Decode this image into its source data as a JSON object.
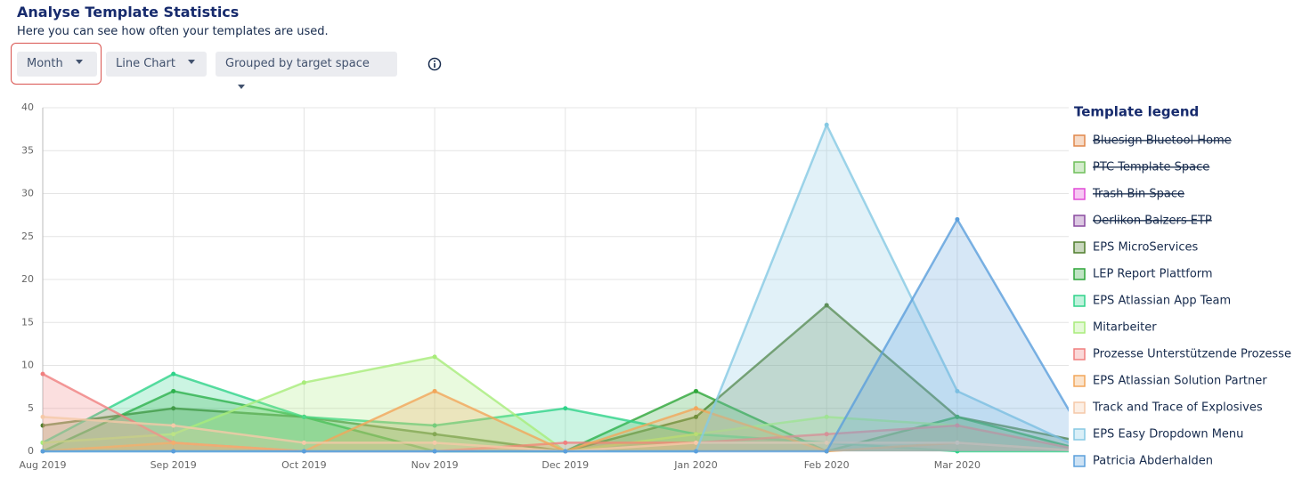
{
  "header": {
    "title": "Analyse Template Statistics",
    "subtitle": "Here you can see how often your templates are used."
  },
  "controls": [
    {
      "label": "Month"
    },
    {
      "label": "Line Chart"
    },
    {
      "label": "Grouped by target space"
    }
  ],
  "chart_data": {
    "type": "area",
    "categories": [
      "Aug 2019",
      "Sep 2019",
      "Oct 2019",
      "Nov 2019",
      "Dec 2019",
      "Jan 2020",
      "Feb 2020",
      "Mar 2020",
      null
    ],
    "ylim": [
      0,
      40
    ],
    "yticks": [
      0,
      5,
      10,
      15,
      20,
      25,
      30,
      35,
      40
    ],
    "grid": true,
    "legend_title": "Template legend",
    "legend": "right",
    "series": [
      {
        "name": "Bluesign Bluetool Home",
        "color": "#e0874a",
        "hidden": true,
        "values": [
          null,
          null,
          null,
          null,
          null,
          null,
          null,
          null,
          null
        ]
      },
      {
        "name": "PTC Template Space",
        "color": "#6fbf5a",
        "hidden": true,
        "values": [
          null,
          null,
          null,
          null,
          null,
          null,
          null,
          null,
          null
        ]
      },
      {
        "name": "Trash Bin Space",
        "color": "#e14ad6",
        "hidden": true,
        "values": [
          null,
          null,
          null,
          null,
          null,
          null,
          null,
          null,
          null
        ]
      },
      {
        "name": "Oerlikon Balzers ETP",
        "color": "#8a4aa0",
        "hidden": true,
        "values": [
          null,
          null,
          null,
          null,
          null,
          null,
          null,
          null,
          null
        ]
      },
      {
        "name": "EPS MicroServices",
        "color": "#4f7d2c",
        "values": [
          3,
          5,
          4,
          2,
          0,
          4,
          17,
          4,
          1
        ]
      },
      {
        "name": "LEP Report Plattform",
        "color": "#2ea63a",
        "values": [
          0,
          7,
          4,
          0,
          0,
          7,
          0,
          4,
          0
        ]
      },
      {
        "name": "EPS Atlassian App Team",
        "color": "#2fd38a",
        "values": [
          1,
          9,
          4,
          3,
          5,
          2,
          1,
          0,
          0
        ]
      },
      {
        "name": "Mitarbeiter",
        "color": "#a8ec7a",
        "values": [
          1,
          2,
          8,
          11,
          0,
          2,
          4,
          3,
          0
        ]
      },
      {
        "name": "Prozesse Unterstützende Prozesse",
        "color": "#f07f7f",
        "values": [
          9,
          1,
          0,
          0,
          1,
          1,
          2,
          3,
          0
        ]
      },
      {
        "name": "EPS Atlassian Solution Partner",
        "color": "#f2a65a",
        "values": [
          0,
          1,
          0,
          7,
          0,
          5,
          0,
          1,
          0
        ]
      },
      {
        "name": "Track and Trace of Explosives",
        "color": "#f5c9a8",
        "values": [
          4,
          3,
          1,
          1,
          0,
          1,
          1,
          1,
          0
        ]
      },
      {
        "name": "EPS Easy Dropdown Menu",
        "color": "#86c9e3",
        "values": [
          0,
          0,
          0,
          0,
          0,
          0,
          38,
          7,
          0
        ]
      },
      {
        "name": "Patricia Abderhalden",
        "color": "#5b9fdc",
        "values": [
          0,
          0,
          0,
          0,
          0,
          0,
          0,
          27,
          1
        ]
      }
    ]
  }
}
